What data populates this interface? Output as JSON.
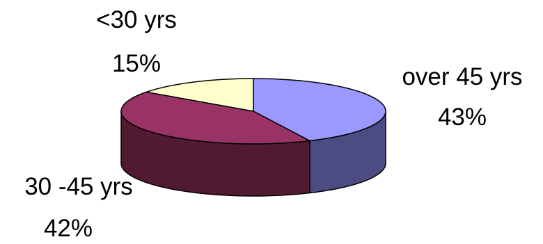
{
  "chart_data": {
    "type": "pie",
    "style": "3d",
    "slices": [
      {
        "name": "over 45 yrs",
        "percent_label": "43%",
        "value": 43,
        "color": "#9999ff",
        "side_color": "#4c4c82"
      },
      {
        "name": "30 -45 yrs",
        "percent_label": "42%",
        "value": 42,
        "color": "#993366",
        "side_color": "#521a32"
      },
      {
        "name": "<30 yrs",
        "percent_label": "15%",
        "value": 15,
        "color": "#ffffcc",
        "side_color": "#d9d9ad"
      }
    ],
    "legend": "none"
  }
}
